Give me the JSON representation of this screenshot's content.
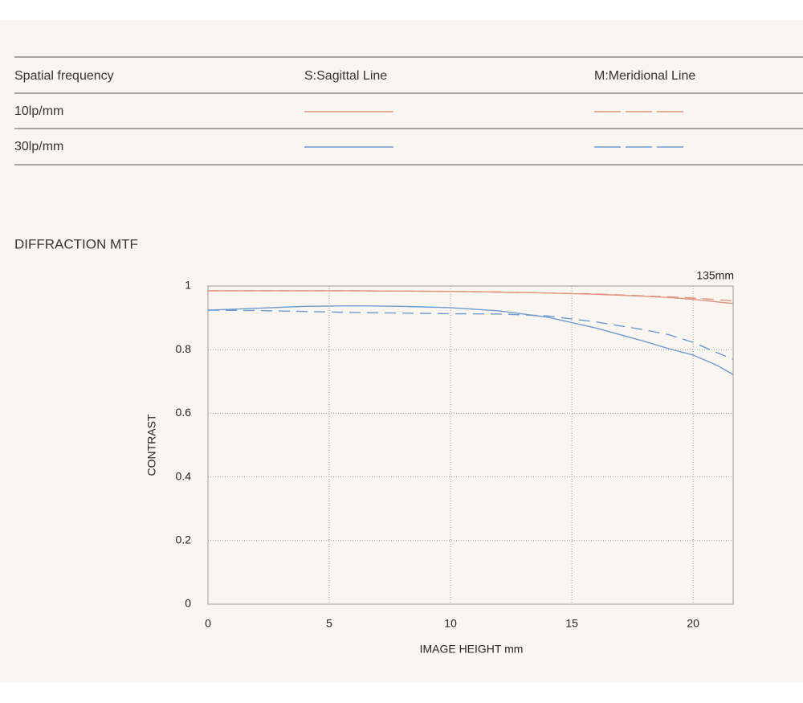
{
  "table": {
    "headers": [
      "Spatial frequency",
      "S:Sagittal Line",
      "M:Meridional Line"
    ],
    "rows": [
      "10lp/mm",
      "30lp/mm"
    ]
  },
  "section_title": "DIFFRACTION MTF",
  "chart_data": {
    "type": "line",
    "annotation": "135mm",
    "xlabel": "IMAGE HEIGHT  mm",
    "ylabel": "CONTRAST",
    "x": [
      0,
      2,
      4,
      6,
      8,
      10,
      12,
      14,
      16,
      18,
      19,
      20,
      21,
      21.65
    ],
    "series": [
      {
        "color": "#e0927e",
        "dashed": false,
        "values": [
          0.985,
          0.985,
          0.985,
          0.985,
          0.984,
          0.983,
          0.981,
          0.978,
          0.974,
          0.968,
          0.964,
          0.958,
          0.95,
          0.945
        ]
      },
      {
        "color": "#e0927e",
        "dashed": true,
        "values": [
          0.985,
          0.985,
          0.985,
          0.985,
          0.984,
          0.983,
          0.981,
          0.978,
          0.975,
          0.969,
          0.966,
          0.962,
          0.957,
          0.953
        ]
      },
      {
        "color": "#6c9bd2",
        "dashed": false,
        "values": [
          0.924,
          0.93,
          0.936,
          0.938,
          0.936,
          0.932,
          0.922,
          0.902,
          0.868,
          0.826,
          0.803,
          0.783,
          0.75,
          0.722
        ]
      },
      {
        "color": "#6c9bd2",
        "dashed": true,
        "values": [
          0.924,
          0.923,
          0.92,
          0.917,
          0.915,
          0.913,
          0.912,
          0.906,
          0.887,
          0.862,
          0.847,
          0.823,
          0.79,
          0.77
        ]
      }
    ],
    "xlim": [
      0,
      21.65
    ],
    "ylim": [
      0,
      1
    ],
    "xticks": [
      0,
      5,
      10,
      15,
      20
    ],
    "yticks": [
      0,
      0.2,
      0.4,
      0.6,
      0.8,
      1
    ],
    "grid": true
  }
}
